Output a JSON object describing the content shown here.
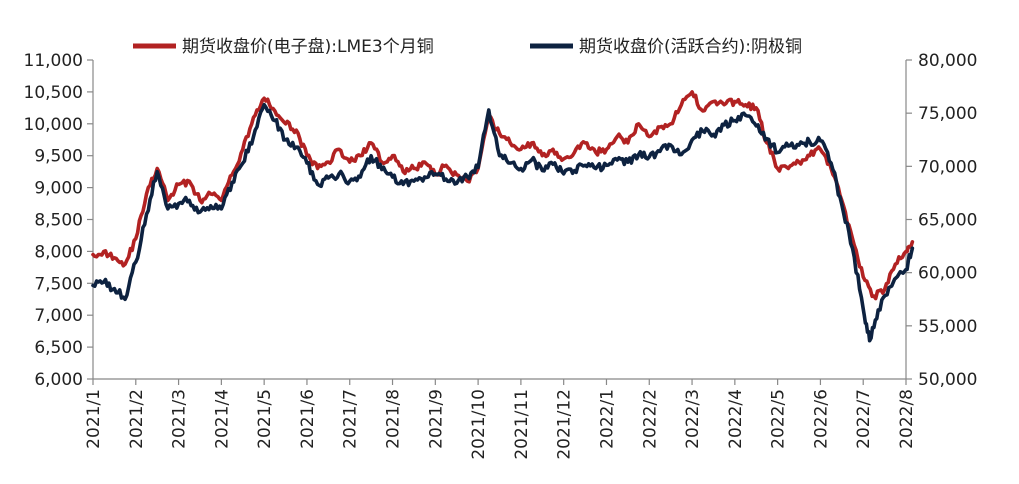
{
  "chart_data": {
    "type": "line",
    "title": "",
    "legend_position": "top",
    "grid": false,
    "x_categories": [
      "2021/1",
      "2021/2",
      "2021/3",
      "2021/4",
      "2021/5",
      "2021/6",
      "2021/7",
      "2021/8",
      "2021/9",
      "2021/10",
      "2021/11",
      "2021/12",
      "2022/1",
      "2022/2",
      "2022/3",
      "2022/4",
      "2022/5",
      "2022/6",
      "2022/7",
      "2022/8"
    ],
    "y_left": {
      "range": [
        6000,
        11000
      ],
      "ticks": [
        "6,000",
        "6,500",
        "7,000",
        "7,500",
        "8,000",
        "8,500",
        "9,000",
        "9,500",
        "10,000",
        "10,500",
        "11,000"
      ]
    },
    "y_right": {
      "range": [
        50000,
        80000
      ],
      "ticks": [
        "50,000",
        "55,000",
        "60,000",
        "65,000",
        "70,000",
        "75,000",
        "80,000"
      ]
    },
    "series": [
      {
        "name": "期货收盘价(电子盘):LME3个月铜",
        "axis": "left",
        "color": "#b22222",
        "points": [
          [
            "2021/1",
            7950
          ],
          [
            "2021/1.25",
            8000
          ],
          [
            "2021/1.5",
            7900
          ],
          [
            "2021/1.75",
            7800
          ],
          [
            "2021/2",
            8200
          ],
          [
            "2021/2.25",
            8900
          ],
          [
            "2021/2.5",
            9300
          ],
          [
            "2021/2.75",
            8800
          ],
          [
            "2021/3",
            9050
          ],
          [
            "2021/3.25",
            9100
          ],
          [
            "2021/3.5",
            8800
          ],
          [
            "2021/3.75",
            8900
          ],
          [
            "2021/4",
            8800
          ],
          [
            "2021/4.25",
            9200
          ],
          [
            "2021/4.5",
            9600
          ],
          [
            "2021/4.75",
            10100
          ],
          [
            "2021/5",
            10400
          ],
          [
            "2021/5.25",
            10200
          ],
          [
            "2021/5.5",
            10000
          ],
          [
            "2021/5.75",
            9900
          ],
          [
            "2021/6",
            9500
          ],
          [
            "2021/6.25",
            9300
          ],
          [
            "2021/6.5",
            9400
          ],
          [
            "2021/6.75",
            9600
          ],
          [
            "2021/7",
            9400
          ],
          [
            "2021/7.25",
            9500
          ],
          [
            "2021/7.5",
            9700
          ],
          [
            "2021/7.75",
            9400
          ],
          [
            "2021/8",
            9500
          ],
          [
            "2021/8.25",
            9250
          ],
          [
            "2021/8.5",
            9300
          ],
          [
            "2021/8.75",
            9400
          ],
          [
            "2021/9",
            9200
          ],
          [
            "2021/9.25",
            9350
          ],
          [
            "2021/9.5",
            9200
          ],
          [
            "2021/9.75",
            9100
          ],
          [
            "2021/10",
            9300
          ],
          [
            "2021/10.25",
            10100
          ],
          [
            "2021/10.5",
            9850
          ],
          [
            "2021/10.75",
            9700
          ],
          [
            "2021/11",
            9600
          ],
          [
            "2021/11.25",
            9700
          ],
          [
            "2021/11.5",
            9500
          ],
          [
            "2021/11.75",
            9600
          ],
          [
            "2021/12",
            9450
          ],
          [
            "2021/12.25",
            9550
          ],
          [
            "2021/12.5",
            9700
          ],
          [
            "2021/12.75",
            9550
          ],
          [
            "2022/1",
            9600
          ],
          [
            "2022/1.25",
            9800
          ],
          [
            "2022/1.5",
            9700
          ],
          [
            "2022/1.75",
            10000
          ],
          [
            "2022/2",
            9800
          ],
          [
            "2022/2.25",
            9950
          ],
          [
            "2022/2.5",
            10000
          ],
          [
            "2022/2.75",
            10300
          ],
          [
            "2022/3",
            10500
          ],
          [
            "2022/3.25",
            10200
          ],
          [
            "2022/3.5",
            10350
          ],
          [
            "2022/3.75",
            10300
          ],
          [
            "2022/4",
            10350
          ],
          [
            "2022/4.25",
            10300
          ],
          [
            "2022/4.5",
            10250
          ],
          [
            "2022/4.75",
            9700
          ],
          [
            "2022/5",
            9300
          ],
          [
            "2022/5.25",
            9300
          ],
          [
            "2022/5.5",
            9400
          ],
          [
            "2022/5.75",
            9500
          ],
          [
            "2022/6",
            9600
          ],
          [
            "2022/6.25",
            9300
          ],
          [
            "2022/6.5",
            8800
          ],
          [
            "2022/6.75",
            8200
          ],
          [
            "2022/7",
            7600
          ],
          [
            "2022/7.25",
            7300
          ],
          [
            "2022/7.5",
            7400
          ],
          [
            "2022/7.75",
            7800
          ],
          [
            "2022/8",
            8000
          ],
          [
            "2022/8.15",
            8150
          ]
        ]
      },
      {
        "name": "期货收盘价(活跃合约):阴极铜",
        "axis": "right",
        "color": "#0d2240",
        "points": [
          [
            "2021/1",
            58800
          ],
          [
            "2021/1.25",
            59100
          ],
          [
            "2021/1.5",
            58500
          ],
          [
            "2021/1.75",
            57500
          ],
          [
            "2021/2",
            61000
          ],
          [
            "2021/2.25",
            65500
          ],
          [
            "2021/2.5",
            69500
          ],
          [
            "2021/2.75",
            66000
          ],
          [
            "2021/3",
            66500
          ],
          [
            "2021/3.25",
            66800
          ],
          [
            "2021/3.5",
            65700
          ],
          [
            "2021/3.75",
            66300
          ],
          [
            "2021/4",
            66000
          ],
          [
            "2021/4.25",
            68500
          ],
          [
            "2021/4.5",
            70300
          ],
          [
            "2021/4.75",
            72800
          ],
          [
            "2021/5",
            75800
          ],
          [
            "2021/5.25",
            74300
          ],
          [
            "2021/5.5",
            72500
          ],
          [
            "2021/5.75",
            71800
          ],
          [
            "2021/6",
            70300
          ],
          [
            "2021/6.25",
            68300
          ],
          [
            "2021/6.5",
            68900
          ],
          [
            "2021/6.75",
            69300
          ],
          [
            "2021/7",
            68600
          ],
          [
            "2021/7.25",
            69000
          ],
          [
            "2021/7.5",
            71000
          ],
          [
            "2021/7.75",
            69700
          ],
          [
            "2021/8",
            69000
          ],
          [
            "2021/8.25",
            68300
          ],
          [
            "2021/8.5",
            68600
          ],
          [
            "2021/8.75",
            69000
          ],
          [
            "2021/9",
            69300
          ],
          [
            "2021/9.25",
            68800
          ],
          [
            "2021/9.5",
            68400
          ],
          [
            "2021/9.75",
            69000
          ],
          [
            "2021/10",
            69900
          ],
          [
            "2021/10.25",
            75300
          ],
          [
            "2021/10.5",
            71000
          ],
          [
            "2021/10.75",
            70300
          ],
          [
            "2021/11",
            69800
          ],
          [
            "2021/11.25",
            70600
          ],
          [
            "2021/11.5",
            69600
          ],
          [
            "2021/11.75",
            70200
          ],
          [
            "2021/12",
            69300
          ],
          [
            "2021/12.25",
            69600
          ],
          [
            "2021/12.5",
            70100
          ],
          [
            "2021/12.75",
            69800
          ],
          [
            "2022/1",
            70100
          ],
          [
            "2022/1.25",
            70600
          ],
          [
            "2022/1.5",
            70400
          ],
          [
            "2022/1.75",
            71100
          ],
          [
            "2022/2",
            70900
          ],
          [
            "2022/2.25",
            71400
          ],
          [
            "2022/2.5",
            72000
          ],
          [
            "2022/2.75",
            71100
          ],
          [
            "2022/3",
            72500
          ],
          [
            "2022/3.25",
            73300
          ],
          [
            "2022/3.5",
            73000
          ],
          [
            "2022/3.75",
            73900
          ],
          [
            "2022/4",
            74300
          ],
          [
            "2022/4.25",
            74800
          ],
          [
            "2022/4.5",
            73800
          ],
          [
            "2022/4.75",
            72600
          ],
          [
            "2022/5",
            71300
          ],
          [
            "2022/5.25",
            71900
          ],
          [
            "2022/5.5",
            72000
          ],
          [
            "2022/5.75",
            72300
          ],
          [
            "2022/6",
            72400
          ],
          [
            "2022/6.25",
            70300
          ],
          [
            "2022/6.5",
            66400
          ],
          [
            "2022/6.75",
            62300
          ],
          [
            "2022/7",
            56600
          ],
          [
            "2022/7.15",
            53600
          ],
          [
            "2022/7.35",
            56500
          ],
          [
            "2022/7.6",
            58600
          ],
          [
            "2022/8",
            60300
          ],
          [
            "2022/8.15",
            62300
          ]
        ]
      }
    ]
  }
}
